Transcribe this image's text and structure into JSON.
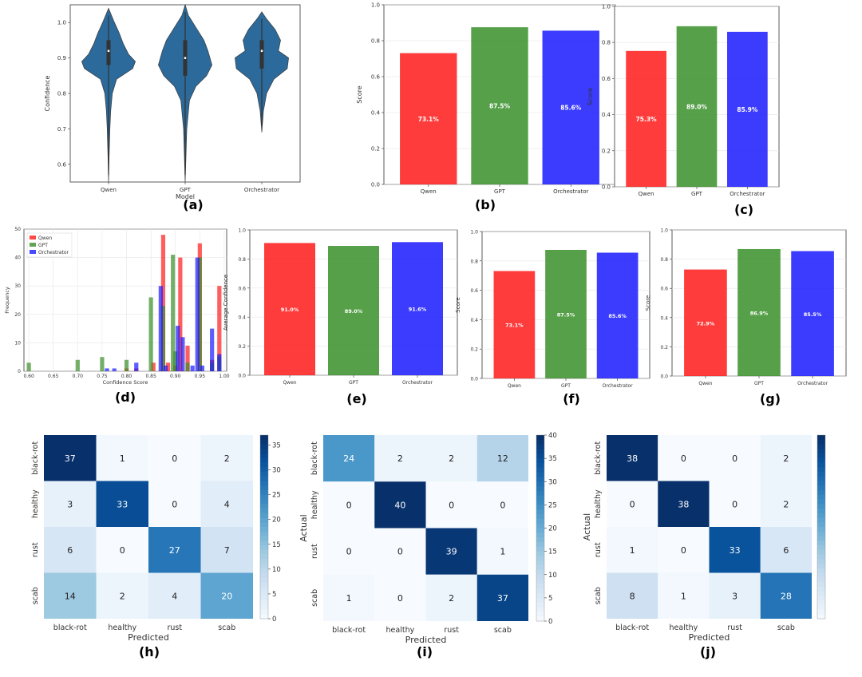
{
  "colors": {
    "qwen": "#ff1a1a",
    "gpt": "#3a8f2a",
    "orch": "#1a1aff",
    "violin": "#2b6a9b"
  },
  "panel_labels": [
    "(a)",
    "(b)",
    "(c)",
    "(d)",
    "(e)",
    "(f)",
    "(g)",
    "(h)",
    "(i)",
    "(j)"
  ],
  "chart_data": [
    {
      "id": "a",
      "type": "violin",
      "categories": [
        "Qwen",
        "GPT",
        "Orchestrator"
      ],
      "xlabel": "Model",
      "ylabel": "Confidence",
      "ylim": [
        0.55,
        1.05
      ],
      "yticks": [
        0.6,
        0.7,
        0.8,
        0.9,
        1.0
      ],
      "medians": [
        0.92,
        0.9,
        0.92
      ],
      "q1": [
        0.88,
        0.85,
        0.87
      ],
      "q3": [
        0.95,
        0.95,
        0.95
      ],
      "min": [
        0.55,
        0.55,
        0.69
      ],
      "max": [
        1.04,
        1.05,
        1.03
      ]
    },
    {
      "id": "b",
      "type": "bar",
      "categories": [
        "Qwen",
        "GPT",
        "Orchestrator"
      ],
      "values": [
        0.731,
        0.875,
        0.856
      ],
      "labels": [
        "73.1%",
        "87.5%",
        "85.6%"
      ],
      "ylabel": "Score",
      "ylim": [
        0,
        1.0
      ],
      "yticks": [
        0.0,
        0.2,
        0.4,
        0.6,
        0.8,
        1.0
      ]
    },
    {
      "id": "c",
      "type": "bar",
      "categories": [
        "Qwen",
        "GPT",
        "Orchestrator"
      ],
      "values": [
        0.753,
        0.89,
        0.859
      ],
      "labels": [
        "75.3%",
        "89.0%",
        "85.9%"
      ],
      "ylabel": "Score",
      "ylim": [
        0,
        1.0
      ],
      "yticks": [
        0.0,
        0.2,
        0.4,
        0.6,
        0.8,
        1.0
      ]
    },
    {
      "id": "d",
      "type": "histogram",
      "xlabel": "Confidence Score",
      "ylabel": "Frequency",
      "xlim": [
        0.59,
        1.005
      ],
      "ylim": [
        0,
        50
      ],
      "xticks": [
        0.6,
        0.65,
        0.7,
        0.75,
        0.8,
        0.85,
        0.9,
        0.95,
        1.0
      ],
      "yticks": [
        0,
        10,
        20,
        30,
        40,
        50
      ],
      "legend": [
        "Qwen",
        "GPT",
        "Orchestrator"
      ],
      "series": [
        {
          "name": "Qwen",
          "bins": [
            [
              0.8,
              1
            ],
            [
              0.82,
              1
            ],
            [
              0.855,
              3
            ],
            [
              0.875,
              48
            ],
            [
              0.885,
              3
            ],
            [
              0.9,
              2
            ],
            [
              0.91,
              40
            ],
            [
              0.925,
              9
            ],
            [
              0.95,
              45
            ],
            [
              0.975,
              4
            ],
            [
              0.99,
              30
            ]
          ]
        },
        {
          "name": "GPT",
          "bins": [
            [
              0.6,
              3
            ],
            [
              0.7,
              4
            ],
            [
              0.75,
              5
            ],
            [
              0.8,
              4
            ],
            [
              0.85,
              26
            ],
            [
              0.875,
              23
            ],
            [
              0.895,
              41
            ],
            [
              0.9,
              7
            ],
            [
              0.925,
              3
            ],
            [
              0.95,
              40
            ],
            [
              0.975,
              3
            ],
            [
              0.99,
              5
            ]
          ]
        },
        {
          "name": "Orchestrator",
          "bins": [
            [
              0.76,
              1
            ],
            [
              0.775,
              1
            ],
            [
              0.82,
              3
            ],
            [
              0.87,
              30
            ],
            [
              0.88,
              2
            ],
            [
              0.905,
              16
            ],
            [
              0.915,
              12
            ],
            [
              0.935,
              2
            ],
            [
              0.945,
              40
            ],
            [
              0.955,
              2
            ],
            [
              0.975,
              15
            ],
            [
              0.99,
              6
            ]
          ]
        }
      ]
    },
    {
      "id": "e",
      "type": "bar",
      "categories": [
        "Qwen",
        "GPT",
        "Orchestrator"
      ],
      "values": [
        0.91,
        0.89,
        0.916
      ],
      "labels": [
        "91.0%",
        "89.0%",
        "91.6%"
      ],
      "ylabel": "Average Confidence",
      "ylim": [
        0,
        1.0
      ],
      "yticks": [
        0.0,
        0.2,
        0.4,
        0.6,
        0.8,
        1.0
      ]
    },
    {
      "id": "f",
      "type": "bar",
      "categories": [
        "Qwen",
        "GPT",
        "Orchestrator"
      ],
      "values": [
        0.731,
        0.875,
        0.856
      ],
      "labels": [
        "73.1%",
        "87.5%",
        "85.6%"
      ],
      "ylabel": "Score",
      "ylim": [
        0,
        1.0
      ],
      "yticks": [
        0.0,
        0.2,
        0.4,
        0.6,
        0.8,
        1.0
      ]
    },
    {
      "id": "g",
      "type": "bar",
      "categories": [
        "Qwen",
        "GPT",
        "Orchestrator"
      ],
      "values": [
        0.729,
        0.869,
        0.855
      ],
      "labels": [
        "72.9%",
        "86.9%",
        "85.5%"
      ],
      "ylabel": "Score",
      "ylim": [
        0,
        1.0
      ],
      "yticks": [
        0.0,
        0.2,
        0.4,
        0.6,
        0.8,
        1.0
      ]
    },
    {
      "id": "h",
      "type": "heatmap",
      "rows": [
        "black-rot",
        "healthy",
        "rust",
        "scab"
      ],
      "cols": [
        "black-rot",
        "healthy",
        "rust",
        "scab"
      ],
      "values": [
        [
          37,
          1,
          0,
          2
        ],
        [
          3,
          33,
          0,
          4
        ],
        [
          6,
          0,
          27,
          7
        ],
        [
          14,
          2,
          4,
          20
        ]
      ],
      "xlabel": "Predicted",
      "ylabel": "",
      "vmax": 37,
      "colorbar_ticks": [
        0,
        5,
        10,
        15,
        20,
        25,
        30,
        35
      ]
    },
    {
      "id": "i",
      "type": "heatmap",
      "rows": [
        "black-rot",
        "healthy",
        "rust",
        "scab"
      ],
      "cols": [
        "black-rot",
        "healthy",
        "rust",
        "scab"
      ],
      "values": [
        [
          24,
          2,
          2,
          12
        ],
        [
          0,
          40,
          0,
          0
        ],
        [
          0,
          0,
          39,
          1
        ],
        [
          1,
          0,
          2,
          37
        ]
      ],
      "xlabel": "Predicted",
      "ylabel": "Actual",
      "vmax": 40,
      "colorbar_ticks": [
        0,
        5,
        10,
        15,
        20,
        25,
        30,
        35,
        40
      ]
    },
    {
      "id": "j",
      "type": "heatmap",
      "rows": [
        "black-rot",
        "healthy",
        "rust",
        "scab"
      ],
      "cols": [
        "black-rot",
        "healthy",
        "rust",
        "scab"
      ],
      "values": [
        [
          38,
          0,
          0,
          2
        ],
        [
          0,
          38,
          0,
          2
        ],
        [
          1,
          0,
          33,
          6
        ],
        [
          8,
          1,
          3,
          28
        ]
      ],
      "xlabel": "Predicted",
      "ylabel": "Actual",
      "vmax": 38,
      "colorbar_ticks": []
    }
  ]
}
